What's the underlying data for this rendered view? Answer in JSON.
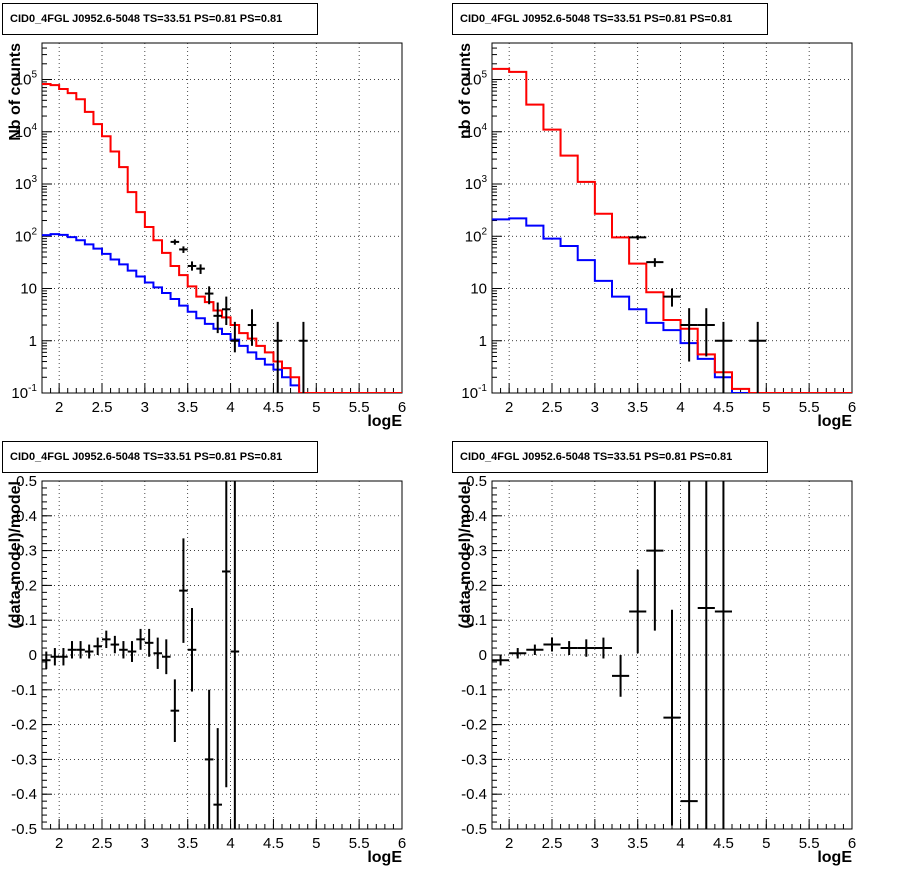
{
  "panels": [
    {
      "title": "CID0_4FGL J0952.6-5048 TS=33.51 PS=0.81 PS=0.81",
      "xlabel": "logE",
      "ylabel": "Nb of counts",
      "type": "step",
      "log_y": true,
      "xlim": [
        1.8,
        6.0
      ],
      "ylim": [
        0.1,
        500000
      ],
      "x_ticks": [
        "2",
        "2.5",
        "3",
        "3.5",
        "4",
        "4.5",
        "5",
        "5.5",
        "6"
      ],
      "y_ticks": [
        "10^-1",
        "1",
        "10",
        "10^2",
        "10^3",
        "10^4",
        "10^5"
      ],
      "bin_width": 0.1,
      "series": [
        {
          "color": "#ff0000",
          "values": [
            82000,
            78000,
            66000,
            55000,
            42000,
            24000,
            14000,
            8200,
            4200,
            2100,
            700,
            290,
            150,
            84,
            48,
            27,
            18,
            11,
            7,
            5.5,
            3.8,
            2.8,
            2,
            1.4,
            1.1,
            0.8,
            0.6,
            0.4,
            0.3,
            0.2,
            0.1,
            0.1,
            0.1,
            0.1,
            0.1,
            0.1,
            0.1,
            0.1,
            0.1,
            0.1,
            0.1,
            0.1
          ]
        },
        {
          "color": "#0000ff",
          "values": [
            105,
            110,
            106,
            96,
            84,
            70,
            58,
            46,
            36,
            29,
            22,
            17,
            13,
            10.5,
            8.2,
            6.3,
            4.7,
            3.6,
            2.7,
            2.1,
            1.7,
            1.35,
            1.05,
            0.8,
            0.6,
            0.45,
            0.35,
            0.28,
            0.2,
            0.14,
            0.1,
            0.1,
            0.1,
            0.1,
            0.1,
            0.1,
            0.1,
            0.1,
            0.1,
            0.1,
            0.1,
            0.1
          ]
        },
        {
          "color": "#000000",
          "values": [
            82000,
            78000,
            66000,
            55000,
            42000,
            24000,
            14000,
            8200,
            4200,
            2100,
            700,
            290,
            150,
            84,
            48,
            27,
            18,
            11,
            7,
            5.5,
            3.8,
            2.8,
            2,
            1.4,
            1.1,
            0.8,
            0.6,
            0.4,
            0.3,
            0.2,
            0.1,
            0.1,
            0.1,
            0.1,
            0.1,
            0.1,
            0.1,
            0.1,
            0.1,
            0.1,
            0.1,
            0.1
          ]
        }
      ],
      "data_points": [
        {
          "x": 3.35,
          "y": 78,
          "err_lo": 9,
          "err_hi": 9
        },
        {
          "x": 3.45,
          "y": 56,
          "err_lo": 8,
          "err_hi": 8
        },
        {
          "x": 3.55,
          "y": 27,
          "err_lo": 5,
          "err_hi": 6
        },
        {
          "x": 3.65,
          "y": 24,
          "err_lo": 5,
          "err_hi": 5
        },
        {
          "x": 3.75,
          "y": 8,
          "err_lo": 3,
          "err_hi": 3
        },
        {
          "x": 3.85,
          "y": 3,
          "err_lo": 1.6,
          "err_hi": 2.4
        },
        {
          "x": 3.95,
          "y": 4,
          "err_lo": 2,
          "err_hi": 3
        },
        {
          "x": 4.05,
          "y": 1,
          "err_lo": 0.4,
          "err_hi": 1.3
        },
        {
          "x": 4.25,
          "y": 2,
          "err_lo": 1.2,
          "err_hi": 2
        },
        {
          "x": 4.55,
          "y": 1,
          "err_lo": 0.9,
          "err_hi": 1.3
        },
        {
          "x": 4.85,
          "y": 1,
          "err_lo": 0.9,
          "err_hi": 1.3
        }
      ]
    },
    {
      "title": "CID0_4FGL J0952.6-5048 TS=33.51 PS=0.81 PS=0.81",
      "xlabel": "logE",
      "ylabel": "nb of counts",
      "type": "step",
      "log_y": true,
      "xlim": [
        1.8,
        6.0
      ],
      "ylim": [
        0.1,
        500000
      ],
      "x_ticks": [
        "2",
        "2.5",
        "3",
        "3.5",
        "4",
        "4.5",
        "5",
        "5.5",
        "6"
      ],
      "y_ticks": [
        "10^-1",
        "1",
        "10",
        "10^2",
        "10^3",
        "10^4",
        "10^5"
      ],
      "bin_width": 0.2,
      "series": [
        {
          "color": "#ff0000",
          "values": [
            160000,
            140000,
            33000,
            11000,
            3500,
            1100,
            270,
            95,
            30,
            8.5,
            2.5,
            1.7,
            0.55,
            0.25,
            0.12,
            0.1,
            0.1,
            0.1,
            0.1,
            0.1,
            0.1
          ]
        },
        {
          "color": "#0000ff",
          "values": [
            210,
            220,
            160,
            90,
            65,
            35,
            14,
            7,
            4,
            2.2,
            1.6,
            0.9,
            0.45,
            0.2,
            0.1,
            0.1,
            0.1,
            0.1,
            0.1,
            0.1,
            0.1
          ]
        },
        {
          "color": "#000000",
          "values": [
            160000,
            140000,
            33000,
            11000,
            3500,
            1100,
            270,
            95,
            30,
            8.5,
            2.5,
            1.7,
            0.55,
            0.25,
            0.12,
            0.1,
            0.1,
            0.1,
            0.1,
            0.1,
            0.1
          ]
        }
      ],
      "data_points": [
        {
          "x": 3.5,
          "y": 95,
          "err_lo": 10,
          "err_hi": 10
        },
        {
          "x": 3.7,
          "y": 32,
          "err_lo": 6,
          "err_hi": 6
        },
        {
          "x": 3.9,
          "y": 7,
          "err_lo": 2.5,
          "err_hi": 3
        },
        {
          "x": 4.1,
          "y": 2,
          "err_lo": 1.6,
          "err_hi": 2.2
        },
        {
          "x": 4.3,
          "y": 2,
          "err_lo": 1.5,
          "err_hi": 2.2
        },
        {
          "x": 4.5,
          "y": 1,
          "err_lo": 0.9,
          "err_hi": 1.3
        },
        {
          "x": 4.9,
          "y": 1,
          "err_lo": 0.9,
          "err_hi": 1.3
        }
      ]
    },
    {
      "title": "CID0_4FGL J0952.6-5048 TS=33.51 PS=0.81 PS=0.81",
      "xlabel": "logE",
      "ylabel": "(data-model)/model",
      "type": "residual",
      "log_y": false,
      "xlim": [
        1.8,
        6.0
      ],
      "ylim": [
        -0.5,
        0.5
      ],
      "x_ticks": [
        "2",
        "2.5",
        "3",
        "3.5",
        "4",
        "4.5",
        "5",
        "5.5",
        "6"
      ],
      "y_ticks": [
        "-0.5",
        "-0.4",
        "-0.3",
        "-0.2",
        "-0.1",
        "0",
        "0.1",
        "0.2",
        "0.3",
        "0.4",
        "0.5"
      ],
      "bin_width": 0.1,
      "points": [
        {
          "x": 1.85,
          "y": -0.015,
          "err": 0.025
        },
        {
          "x": 1.95,
          "y": -0.005,
          "err": 0.025
        },
        {
          "x": 2.05,
          "y": -0.005,
          "err": 0.025
        },
        {
          "x": 2.15,
          "y": 0.015,
          "err": 0.025
        },
        {
          "x": 2.25,
          "y": 0.015,
          "err": 0.025
        },
        {
          "x": 2.35,
          "y": 0.01,
          "err": 0.02
        },
        {
          "x": 2.45,
          "y": 0.025,
          "err": 0.025
        },
        {
          "x": 2.55,
          "y": 0.045,
          "err": 0.025
        },
        {
          "x": 2.65,
          "y": 0.03,
          "err": 0.025
        },
        {
          "x": 2.75,
          "y": 0.015,
          "err": 0.025
        },
        {
          "x": 2.85,
          "y": 0.01,
          "err": 0.03
        },
        {
          "x": 2.95,
          "y": 0.045,
          "err": 0.03
        },
        {
          "x": 3.05,
          "y": 0.035,
          "err": 0.04
        },
        {
          "x": 3.15,
          "y": 0.005,
          "err": 0.045
        },
        {
          "x": 3.25,
          "y": -0.005,
          "err": 0.05
        },
        {
          "x": 3.35,
          "y": -0.16,
          "err": 0.09
        },
        {
          "x": 3.45,
          "y": 0.185,
          "err": 0.15
        },
        {
          "x": 3.55,
          "y": 0.015,
          "err": 0.12
        },
        {
          "x": 3.75,
          "y": -0.3,
          "err": 0.2
        },
        {
          "x": 3.85,
          "y": -0.43,
          "err": 0.22
        },
        {
          "x": 3.95,
          "y": 0.24,
          "err": 0.62
        },
        {
          "x": 4.05,
          "y": 0.01,
          "err": 0.9
        }
      ]
    },
    {
      "title": "CID0_4FGL J0952.6-5048 TS=33.51 PS=0.81 PS=0.81",
      "xlabel": "logE",
      "ylabel": "(data-model)/model",
      "type": "residual",
      "log_y": false,
      "xlim": [
        1.8,
        6.0
      ],
      "ylim": [
        -0.5,
        0.5
      ],
      "x_ticks": [
        "2",
        "2.5",
        "3",
        "3.5",
        "4",
        "4.5",
        "5",
        "5.5",
        "6"
      ],
      "y_ticks": [
        "-0.5",
        "-0.4",
        "-0.3",
        "-0.2",
        "-0.1",
        "0",
        "0.1",
        "0.2",
        "0.3",
        "0.4",
        "0.5"
      ],
      "bin_width": 0.2,
      "points": [
        {
          "x": 1.9,
          "y": -0.015,
          "err": 0.015
        },
        {
          "x": 2.1,
          "y": 0.005,
          "err": 0.015
        },
        {
          "x": 2.3,
          "y": 0.015,
          "err": 0.015
        },
        {
          "x": 2.5,
          "y": 0.03,
          "err": 0.02
        },
        {
          "x": 2.7,
          "y": 0.02,
          "err": 0.02
        },
        {
          "x": 2.9,
          "y": 0.02,
          "err": 0.025
        },
        {
          "x": 3.1,
          "y": 0.02,
          "err": 0.03
        },
        {
          "x": 3.3,
          "y": -0.06,
          "err": 0.06
        },
        {
          "x": 3.5,
          "y": 0.125,
          "err": 0.12
        },
        {
          "x": 3.7,
          "y": 0.3,
          "err": 0.23
        },
        {
          "x": 3.9,
          "y": -0.18,
          "err": 0.31
        },
        {
          "x": 4.1,
          "y": -0.42,
          "err": 0.95
        },
        {
          "x": 4.3,
          "y": 0.135,
          "err": 0.95
        },
        {
          "x": 4.5,
          "y": 0.125,
          "err": 0.95
        }
      ]
    }
  ]
}
